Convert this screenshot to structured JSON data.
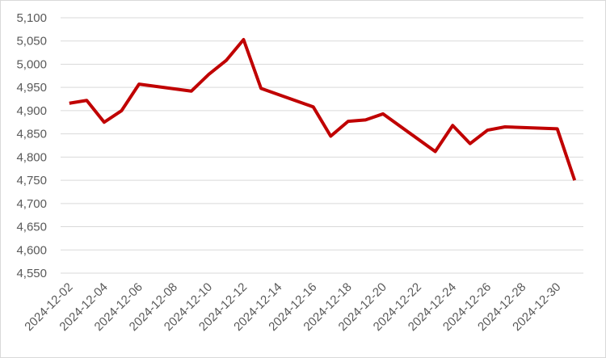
{
  "chart_data": {
    "type": "line",
    "x": [
      "2024-12-02",
      "2024-12-03",
      "2024-12-04",
      "2024-12-05",
      "2024-12-06",
      "2024-12-09",
      "2024-12-10",
      "2024-12-11",
      "2024-12-12",
      "2024-12-13",
      "2024-12-16",
      "2024-12-17",
      "2024-12-18",
      "2024-12-19",
      "2024-12-20",
      "2024-12-23",
      "2024-12-24",
      "2024-12-25",
      "2024-12-26",
      "2024-12-27",
      "2024-12-30",
      "2024-12-31"
    ],
    "series": [
      {
        "color": "#c00000",
        "values": [
          4916,
          4922,
          4875,
          4900,
          4957,
          4942,
          4978,
          5008,
          5053,
          4948,
          4908,
          4845,
          4877,
          4880,
          4893,
          4812,
          4868,
          4829,
          4858,
          4865,
          4861,
          4750
        ]
      }
    ],
    "xlim": [
      "2024-12-02",
      "2024-12-31"
    ],
    "xticks": [
      "2024-12-02",
      "2024-12-04",
      "2024-12-06",
      "2024-12-08",
      "2024-12-10",
      "2024-12-12",
      "2024-12-14",
      "2024-12-16",
      "2024-12-18",
      "2024-12-20",
      "2024-12-22",
      "2024-12-24",
      "2024-12-26",
      "2024-12-28",
      "2024-12-30"
    ],
    "ylim": [
      4550,
      5100
    ],
    "yticks": [
      {
        "value": 4550,
        "label": "4,550"
      },
      {
        "value": 4600,
        "label": "4,600"
      },
      {
        "value": 4650,
        "label": "4,650"
      },
      {
        "value": 4700,
        "label": "4,700"
      },
      {
        "value": 4750,
        "label": "4,750"
      },
      {
        "value": 4800,
        "label": "4,800"
      },
      {
        "value": 4850,
        "label": "4,850"
      },
      {
        "value": 4900,
        "label": "4,900"
      },
      {
        "value": 4950,
        "label": "4,950"
      },
      {
        "value": 5000,
        "label": "5,000"
      },
      {
        "value": 5050,
        "label": "5,050"
      },
      {
        "value": 5100,
        "label": "5,100"
      }
    ],
    "grid": true
  }
}
